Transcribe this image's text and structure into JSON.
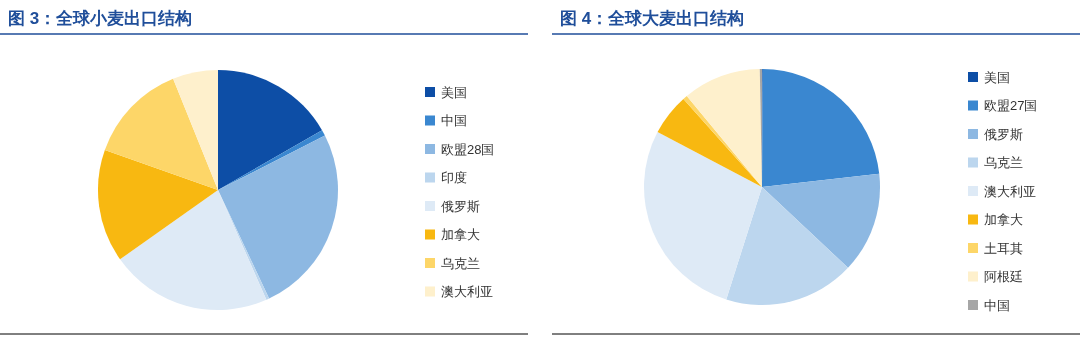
{
  "chart_data": [
    {
      "type": "pie",
      "title": "图 3：全球小麦出口结构",
      "legend": "right",
      "categories": [
        "美国",
        "中国",
        "欧盟28国",
        "印度",
        "俄罗斯",
        "加拿大",
        "乌克兰",
        "澳大利亚"
      ],
      "values": [
        16.7,
        0.8,
        25.5,
        0.4,
        21.8,
        15.2,
        13.5,
        6.1
      ],
      "colors": [
        "#0d4ea6",
        "#3a87d0",
        "#8db8e2",
        "#bcd6ee",
        "#deeaf6",
        "#f8b811",
        "#fdd668",
        "#fef0cc"
      ]
    },
    {
      "type": "pie",
      "title": "图 4：全球大麦出口结构",
      "legend": "right",
      "categories": [
        "美国",
        "欧盟27国",
        "俄罗斯",
        "乌克兰",
        "澳大利亚",
        "加拿大",
        "土耳其",
        "阿根廷",
        "中国"
      ],
      "values": [
        0.1,
        23.1,
        13.8,
        17.9,
        27.8,
        5.7,
        0.6,
        10.7,
        0.3
      ],
      "colors": [
        "#0d4ea6",
        "#3a87d0",
        "#8db8e2",
        "#bcd6ee",
        "#deeaf6",
        "#f8b811",
        "#fdd668",
        "#fef0cc",
        "#a6a6a6"
      ]
    }
  ]
}
